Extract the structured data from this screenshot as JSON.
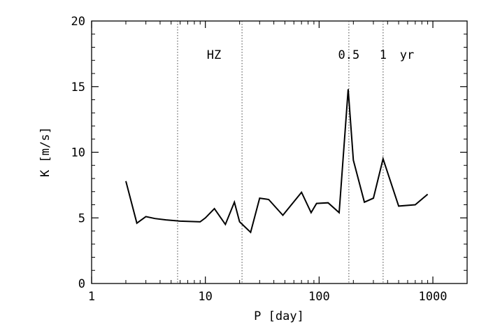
{
  "chart_data": {
    "type": "line",
    "xscale": "log",
    "xlim": [
      1,
      2000
    ],
    "ylim": [
      0,
      20
    ],
    "xlabel": "P [day]",
    "ylabel": "K [m/s]",
    "title": "",
    "grid": false,
    "x_ticks": [
      1,
      10,
      100,
      1000
    ],
    "x_tick_labels": [
      "1",
      "10",
      "100",
      "1000"
    ],
    "y_ticks": [
      0,
      5,
      10,
      15,
      20
    ],
    "y_tick_labels": [
      "0",
      "5",
      "10",
      "15",
      "20"
    ],
    "series": [
      {
        "x": [
          2,
          2.5,
          3,
          3.6,
          4.5,
          6,
          9,
          10,
          12,
          15,
          18,
          20,
          25,
          30,
          36,
          48,
          70,
          85,
          95,
          120,
          150,
          180,
          200,
          250,
          300,
          365,
          500,
          700,
          900
        ],
        "y": [
          7.8,
          4.6,
          5.1,
          4.95,
          4.85,
          4.75,
          4.7,
          5.0,
          5.7,
          4.5,
          6.2,
          4.7,
          3.9,
          6.5,
          6.4,
          5.2,
          6.95,
          5.4,
          6.1,
          6.15,
          5.4,
          14.8,
          9.4,
          6.2,
          6.5,
          9.5,
          5.9,
          6.0,
          6.8
        ]
      }
    ],
    "reference_lines": [
      {
        "x": 5.7,
        "label": ""
      },
      {
        "x": 21,
        "label": ""
      },
      {
        "x": 182.6,
        "label": "0.5"
      },
      {
        "x": 365.25,
        "label": "1"
      }
    ],
    "annotations": {
      "hz": "HZ",
      "yr": "yr"
    }
  }
}
